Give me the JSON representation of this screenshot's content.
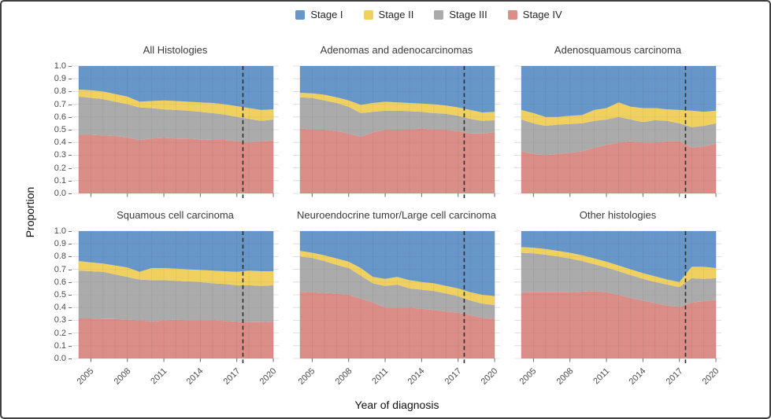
{
  "legend": {
    "items": [
      {
        "label": "Stage I",
        "color": "#6796c9"
      },
      {
        "label": "Stage II",
        "color": "#f0d160"
      },
      {
        "label": "Stage III",
        "color": "#ababab"
      },
      {
        "label": "Stage IV",
        "color": "#db8d87"
      }
    ]
  },
  "axes": {
    "x_label": "Year of diagnosis",
    "y_label": "Proportion",
    "x_ticks": [
      "2005",
      "2008",
      "2011",
      "2014",
      "2017",
      "2020"
    ],
    "y_ticks": [
      "1.0",
      "0.9",
      "0.8",
      "0.7",
      "0.6",
      "0.5",
      "0.4",
      "0.3",
      "0.2",
      "0.1",
      "0.0"
    ]
  },
  "chart_data": {
    "type": "area",
    "stacked": true,
    "xlabel": "Year of diagnosis",
    "ylabel": "Proportion",
    "x": [
      2004,
      2005,
      2006,
      2007,
      2008,
      2009,
      2010,
      2011,
      2012,
      2013,
      2014,
      2015,
      2016,
      2017,
      2018,
      2019,
      2020
    ],
    "x_domain": [
      2003.42,
      2020.45
    ],
    "ylim": [
      0,
      1
    ],
    "grid": true,
    "legend_position": "top",
    "reference_line_x": 2017.5,
    "reference_line_style": "dashed",
    "stack_order_bottom_to_top": [
      "Stage IV",
      "Stage III",
      "Stage II",
      "Stage I"
    ],
    "colors": {
      "Stage I": "#6796c9",
      "Stage II": "#f0d160",
      "Stage III": "#ababab",
      "Stage IV": "#db8d87"
    },
    "panels": [
      {
        "title": "All Histologies",
        "series": [
          {
            "name": "Stage IV",
            "values": [
              0.46,
              0.46,
              0.455,
              0.45,
              0.44,
              0.42,
              0.43,
              0.435,
              0.43,
              0.43,
              0.425,
              0.42,
              0.42,
              0.41,
              0.4,
              0.41,
              0.415
            ]
          },
          {
            "name": "Stage III",
            "values": [
              0.3,
              0.29,
              0.285,
              0.27,
              0.26,
              0.255,
              0.24,
              0.225,
              0.225,
              0.22,
              0.215,
              0.21,
              0.2,
              0.19,
              0.185,
              0.16,
              0.165
            ]
          },
          {
            "name": "Stage II",
            "values": [
              0.055,
              0.06,
              0.06,
              0.06,
              0.06,
              0.045,
              0.055,
              0.07,
              0.07,
              0.07,
              0.075,
              0.08,
              0.08,
              0.085,
              0.085,
              0.085,
              0.08
            ]
          },
          {
            "name": "Stage I",
            "values": [
              0.185,
              0.19,
              0.2,
              0.22,
              0.24,
              0.28,
              0.275,
              0.27,
              0.275,
              0.28,
              0.285,
              0.29,
              0.3,
              0.315,
              0.33,
              0.345,
              0.34
            ]
          }
        ]
      },
      {
        "title": "Adenomas and adenocarcinomas",
        "series": [
          {
            "name": "Stage IV",
            "values": [
              0.51,
              0.5,
              0.5,
              0.49,
              0.47,
              0.445,
              0.48,
              0.5,
              0.5,
              0.5,
              0.51,
              0.5,
              0.5,
              0.49,
              0.47,
              0.47,
              0.48
            ]
          },
          {
            "name": "Stage III",
            "values": [
              0.245,
              0.25,
              0.23,
              0.22,
              0.21,
              0.185,
              0.16,
              0.15,
              0.15,
              0.145,
              0.13,
              0.13,
              0.125,
              0.12,
              0.115,
              0.1,
              0.095
            ]
          },
          {
            "name": "Stage II",
            "values": [
              0.035,
              0.035,
              0.045,
              0.045,
              0.05,
              0.065,
              0.07,
              0.07,
              0.065,
              0.065,
              0.065,
              0.07,
              0.065,
              0.065,
              0.07,
              0.065,
              0.065
            ]
          },
          {
            "name": "Stage I",
            "values": [
              0.21,
              0.215,
              0.225,
              0.245,
              0.27,
              0.305,
              0.29,
              0.28,
              0.285,
              0.29,
              0.295,
              0.3,
              0.31,
              0.325,
              0.345,
              0.365,
              0.36
            ]
          }
        ]
      },
      {
        "title": "Adenosquamous carcinoma",
        "series": [
          {
            "name": "Stage IV",
            "values": [
              0.33,
              0.31,
              0.3,
              0.31,
              0.32,
              0.33,
              0.36,
              0.38,
              0.4,
              0.41,
              0.4,
              0.4,
              0.41,
              0.41,
              0.36,
              0.37,
              0.39
            ]
          },
          {
            "name": "Stage III",
            "values": [
              0.25,
              0.24,
              0.23,
              0.23,
              0.225,
              0.22,
              0.21,
              0.2,
              0.2,
              0.17,
              0.16,
              0.175,
              0.16,
              0.14,
              0.16,
              0.16,
              0.16
            ]
          },
          {
            "name": "Stage II",
            "values": [
              0.075,
              0.08,
              0.07,
              0.06,
              0.065,
              0.065,
              0.085,
              0.09,
              0.115,
              0.1,
              0.11,
              0.095,
              0.09,
              0.105,
              0.13,
              0.11,
              0.1
            ]
          },
          {
            "name": "Stage I",
            "values": [
              0.345,
              0.37,
              0.4,
              0.4,
              0.39,
              0.385,
              0.345,
              0.33,
              0.285,
              0.32,
              0.33,
              0.33,
              0.34,
              0.345,
              0.35,
              0.36,
              0.35
            ]
          }
        ]
      },
      {
        "title": "Squamous cell carcinoma",
        "series": [
          {
            "name": "Stage IV",
            "values": [
              0.315,
              0.315,
              0.31,
              0.31,
              0.305,
              0.3,
              0.29,
              0.3,
              0.305,
              0.3,
              0.3,
              0.3,
              0.295,
              0.29,
              0.285,
              0.285,
              0.29
            ]
          },
          {
            "name": "Stage III",
            "values": [
              0.375,
              0.37,
              0.37,
              0.35,
              0.335,
              0.32,
              0.325,
              0.315,
              0.305,
              0.305,
              0.3,
              0.29,
              0.29,
              0.285,
              0.29,
              0.285,
              0.285
            ]
          },
          {
            "name": "Stage II",
            "values": [
              0.075,
              0.07,
              0.065,
              0.07,
              0.075,
              0.06,
              0.095,
              0.095,
              0.095,
              0.095,
              0.095,
              0.1,
              0.1,
              0.105,
              0.115,
              0.115,
              0.11
            ]
          },
          {
            "name": "Stage I",
            "values": [
              0.235,
              0.245,
              0.255,
              0.27,
              0.285,
              0.32,
              0.29,
              0.29,
              0.295,
              0.3,
              0.305,
              0.31,
              0.315,
              0.32,
              0.31,
              0.315,
              0.315
            ]
          }
        ]
      },
      {
        "title": "Neuroendocrine tumor/Large cell carcinoma",
        "series": [
          {
            "name": "Stage IV",
            "values": [
              0.525,
              0.52,
              0.515,
              0.51,
              0.5,
              0.47,
              0.44,
              0.4,
              0.4,
              0.4,
              0.39,
              0.38,
              0.37,
              0.36,
              0.34,
              0.32,
              0.31
            ]
          },
          {
            "name": "Stage III",
            "values": [
              0.275,
              0.27,
              0.25,
              0.225,
              0.21,
              0.18,
              0.15,
              0.17,
              0.18,
              0.15,
              0.15,
              0.15,
              0.14,
              0.13,
              0.115,
              0.11,
              0.11
            ]
          },
          {
            "name": "Stage II",
            "values": [
              0.045,
              0.04,
              0.045,
              0.05,
              0.05,
              0.06,
              0.05,
              0.055,
              0.06,
              0.065,
              0.06,
              0.06,
              0.06,
              0.06,
              0.065,
              0.07,
              0.07
            ]
          },
          {
            "name": "Stage I",
            "values": [
              0.155,
              0.17,
              0.19,
              0.215,
              0.24,
              0.29,
              0.36,
              0.375,
              0.36,
              0.385,
              0.4,
              0.41,
              0.43,
              0.45,
              0.48,
              0.5,
              0.51
            ]
          }
        ]
      },
      {
        "title": "Other histologies",
        "series": [
          {
            "name": "Stage IV",
            "values": [
              0.52,
              0.52,
              0.52,
              0.52,
              0.52,
              0.525,
              0.53,
              0.52,
              0.5,
              0.475,
              0.455,
              0.435,
              0.415,
              0.405,
              0.44,
              0.45,
              0.46
            ]
          },
          {
            "name": "Stage III",
            "values": [
              0.31,
              0.305,
              0.295,
              0.28,
              0.265,
              0.24,
              0.21,
              0.195,
              0.185,
              0.18,
              0.17,
              0.165,
              0.165,
              0.155,
              0.19,
              0.175,
              0.17
            ]
          },
          {
            "name": "Stage II",
            "values": [
              0.045,
              0.045,
              0.045,
              0.045,
              0.045,
              0.045,
              0.045,
              0.045,
              0.045,
              0.045,
              0.045,
              0.045,
              0.04,
              0.04,
              0.09,
              0.095,
              0.08
            ]
          },
          {
            "name": "Stage I",
            "values": [
              0.125,
              0.13,
              0.14,
              0.155,
              0.17,
              0.19,
              0.215,
              0.24,
              0.27,
              0.3,
              0.33,
              0.355,
              0.38,
              0.4,
              0.28,
              0.28,
              0.29
            ]
          }
        ]
      }
    ]
  }
}
